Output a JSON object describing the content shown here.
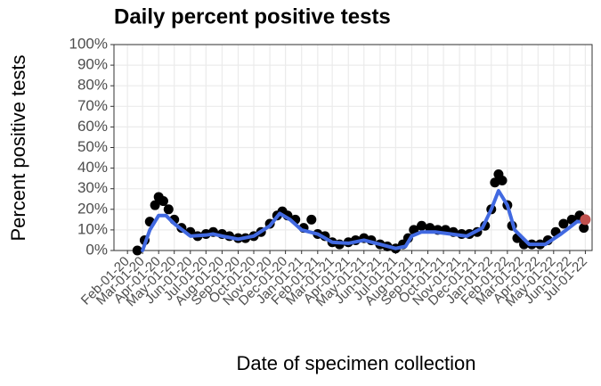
{
  "chart_data": {
    "type": "scatter_smooth",
    "title": "Daily percent positive tests",
    "x_label": "Date of specimen collection",
    "y_label": "Percent positive tests",
    "grid": true,
    "xlim": [
      "2020-01-06",
      "2022-07-14"
    ],
    "ylim": [
      0,
      100
    ],
    "yticks": [
      {
        "value": 0,
        "label": "0%"
      },
      {
        "value": 10,
        "label": "10%"
      },
      {
        "value": 20,
        "label": "20%"
      },
      {
        "value": 30,
        "label": "30%"
      },
      {
        "value": 40,
        "label": "40%"
      },
      {
        "value": 50,
        "label": "50%"
      },
      {
        "value": 60,
        "label": "60%"
      },
      {
        "value": 70,
        "label": "70%"
      },
      {
        "value": 80,
        "label": "80%"
      },
      {
        "value": 90,
        "label": "90%"
      },
      {
        "value": 100,
        "label": "100%"
      }
    ],
    "xticks": [
      {
        "value": "2020-02-01",
        "label": "Feb-01-20"
      },
      {
        "value": "2020-03-01",
        "label": "Mar-01-20"
      },
      {
        "value": "2020-04-01",
        "label": "Apr-01-20"
      },
      {
        "value": "2020-05-01",
        "label": "May-01-20"
      },
      {
        "value": "2020-06-01",
        "label": "Jun-01-20"
      },
      {
        "value": "2020-07-01",
        "label": "Jul-01-20"
      },
      {
        "value": "2020-08-01",
        "label": "Aug-01-20"
      },
      {
        "value": "2020-09-01",
        "label": "Sep-01-20"
      },
      {
        "value": "2020-10-01",
        "label": "Oct-01-20"
      },
      {
        "value": "2020-11-01",
        "label": "Nov-01-20"
      },
      {
        "value": "2020-12-01",
        "label": "Dec-01-20"
      },
      {
        "value": "2021-01-01",
        "label": "Jan-01-21"
      },
      {
        "value": "2021-02-01",
        "label": "Feb-01-21"
      },
      {
        "value": "2021-03-01",
        "label": "Mar-01-21"
      },
      {
        "value": "2021-04-01",
        "label": "Apr-01-21"
      },
      {
        "value": "2021-05-01",
        "label": "May-01-21"
      },
      {
        "value": "2021-06-01",
        "label": "Jun-01-21"
      },
      {
        "value": "2021-07-01",
        "label": "Jul-01-21"
      },
      {
        "value": "2021-08-01",
        "label": "Aug-01-21"
      },
      {
        "value": "2021-09-01",
        "label": "Sep-01-21"
      },
      {
        "value": "2021-10-01",
        "label": "Oct-01-21"
      },
      {
        "value": "2021-11-01",
        "label": "Nov-01-21"
      },
      {
        "value": "2021-12-01",
        "label": "Dec-01-21"
      },
      {
        "value": "2022-01-01",
        "label": "Jan-01-22"
      },
      {
        "value": "2022-02-01",
        "label": "Feb-01-22"
      },
      {
        "value": "2022-03-01",
        "label": "Mar-01-22"
      },
      {
        "value": "2022-04-01",
        "label": "Apr-01-22"
      },
      {
        "value": "2022-05-01",
        "label": "May-01-22"
      },
      {
        "value": "2022-06-01",
        "label": "Jun-01-22"
      },
      {
        "value": "2022-07-01",
        "label": "Jul-01-22"
      }
    ],
    "points": {
      "color": "#000000",
      "x": [
        "2020-02-20",
        "2020-03-05",
        "2020-03-15",
        "2020-03-25",
        "2020-04-01",
        "2020-04-10",
        "2020-04-20",
        "2020-05-01",
        "2020-05-15",
        "2020-06-01",
        "2020-06-15",
        "2020-07-01",
        "2020-07-15",
        "2020-08-01",
        "2020-08-15",
        "2020-09-01",
        "2020-09-15",
        "2020-10-01",
        "2020-10-15",
        "2020-11-01",
        "2020-11-15",
        "2020-11-25",
        "2020-12-05",
        "2020-12-20",
        "2021-01-05",
        "2021-01-20",
        "2021-02-01",
        "2021-02-15",
        "2021-03-01",
        "2021-03-15",
        "2021-04-01",
        "2021-04-15",
        "2021-05-01",
        "2021-05-15",
        "2021-06-01",
        "2021-06-15",
        "2021-07-01",
        "2021-07-15",
        "2021-07-25",
        "2021-08-05",
        "2021-08-20",
        "2021-09-05",
        "2021-09-20",
        "2021-10-05",
        "2021-10-20",
        "2021-11-05",
        "2021-11-20",
        "2021-12-05",
        "2021-12-20",
        "2022-01-01",
        "2022-01-08",
        "2022-01-15",
        "2022-01-22",
        "2022-02-01",
        "2022-02-10",
        "2022-02-20",
        "2022-03-05",
        "2022-03-20",
        "2022-04-05",
        "2022-04-20",
        "2022-05-05",
        "2022-05-20",
        "2022-06-05",
        "2022-06-20",
        "2022-06-28"
      ],
      "values": [
        0,
        5,
        14,
        22,
        26,
        24,
        20,
        15,
        11,
        9,
        7,
        8,
        9,
        8,
        7,
        6,
        6,
        7,
        9,
        13,
        17,
        19,
        17,
        15,
        11,
        15,
        8,
        7,
        4,
        3,
        4,
        5,
        6,
        5,
        3,
        2,
        1,
        3,
        6,
        10,
        12,
        11,
        10,
        10,
        9,
        8,
        8,
        9,
        12,
        20,
        33,
        37,
        34,
        22,
        12,
        6,
        3,
        3,
        3,
        5,
        9,
        13,
        15,
        17,
        11
      ]
    },
    "smooth": {
      "color": "#4169e1",
      "x": [
        "2020-03-01",
        "2020-03-15",
        "2020-04-01",
        "2020-04-15",
        "2020-05-01",
        "2020-06-01",
        "2020-07-01",
        "2020-07-15",
        "2020-08-01",
        "2020-09-01",
        "2020-10-01",
        "2020-11-01",
        "2020-11-20",
        "2020-12-10",
        "2021-01-01",
        "2021-02-01",
        "2021-03-01",
        "2021-04-01",
        "2021-05-01",
        "2021-06-01",
        "2021-07-01",
        "2021-07-20",
        "2021-08-01",
        "2021-08-20",
        "2021-09-15",
        "2021-10-15",
        "2021-11-15",
        "2021-12-15",
        "2022-01-01",
        "2022-01-15",
        "2022-02-01",
        "2022-02-15",
        "2022-03-15",
        "2022-04-15",
        "2022-05-15",
        "2022-06-15",
        "2022-07-01"
      ],
      "values": [
        0,
        10,
        17,
        17,
        13,
        7,
        7.5,
        8,
        7,
        5.5,
        7,
        12,
        18,
        15,
        10,
        8,
        4,
        3.5,
        5,
        3,
        1,
        2,
        7,
        9,
        9,
        8,
        7,
        11,
        20,
        29,
        22,
        10,
        3,
        3,
        8,
        14,
        14
      ]
    },
    "last_point": {
      "color": "#c0504d",
      "x": "2022-07-01",
      "value": 15
    }
  }
}
